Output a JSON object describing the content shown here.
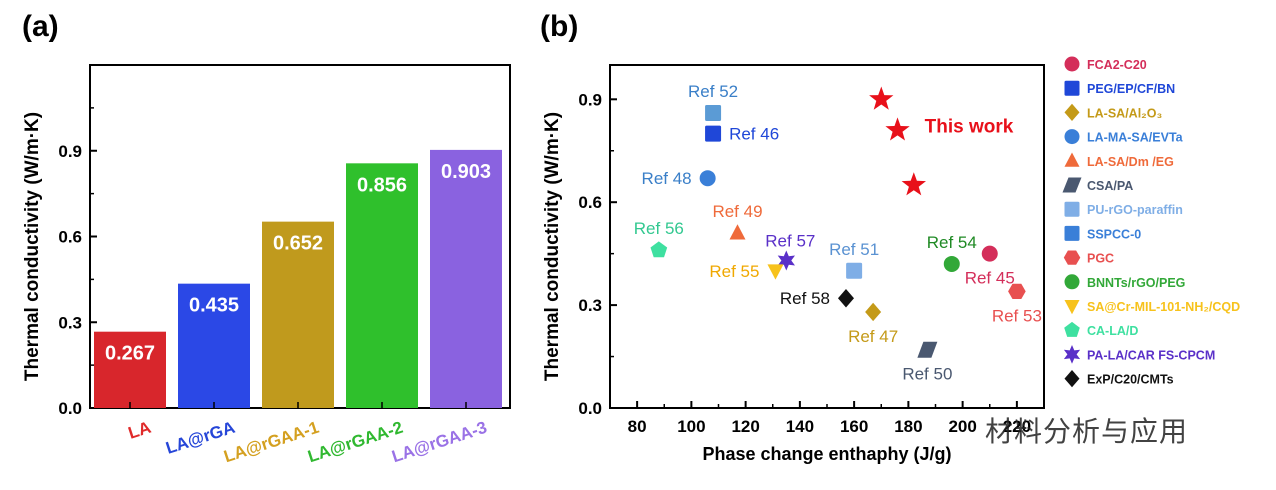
{
  "panel_labels": [
    "(a)",
    "(b)"
  ],
  "watermark": "材料分析与应用",
  "chart_data": [
    {
      "type": "bar",
      "title": "",
      "xlabel": "",
      "ylabel": "Thermal conductivity (W/m·K)",
      "ylim": [
        0,
        1.2
      ],
      "yticks": [
        "0.0",
        "0.3",
        "0.6",
        "0.9"
      ],
      "categories": [
        "LA",
        "LA@rGA",
        "LA@rGAA-1",
        "LA@rGAA-2",
        "LA@rGAA-3"
      ],
      "values": [
        0.267,
        0.435,
        0.652,
        0.856,
        0.903
      ],
      "value_labels": [
        "0.267",
        "0.435",
        "0.652",
        "0.856",
        "0.903"
      ],
      "colors": [
        "#d8262c",
        "#2b48e6",
        "#c09a1d",
        "#2fc02c",
        "#8a62e0"
      ],
      "label_colors": [
        "#e02a2a",
        "#2646d8",
        "#d4a020",
        "#30b830",
        "#9a72e6"
      ],
      "grid": false
    },
    {
      "type": "scatter",
      "title": "",
      "xlabel": "Phase change enthaphy (J/g)",
      "ylabel": "Thermal conductivity (W/m·K)",
      "xlim": [
        70,
        230
      ],
      "ylim": [
        0,
        1.0
      ],
      "xticks": [
        "80",
        "100",
        "120",
        "140",
        "160",
        "180",
        "200",
        "220"
      ],
      "yticks": [
        "0.0",
        "0.3",
        "0.6",
        "0.9"
      ],
      "points": [
        {
          "label": "Ref 52",
          "x": 108,
          "y": 0.86,
          "shape": "square",
          "color": "#5b9bd5",
          "label_color": "#3a7fc8",
          "label_pos": "above"
        },
        {
          "label": "Ref 46",
          "x": 108,
          "y": 0.8,
          "shape": "square",
          "color": "#1f47d8",
          "label_color": "#1f47d8",
          "label_pos": "right"
        },
        {
          "label": "Ref 48",
          "x": 106,
          "y": 0.67,
          "shape": "circle",
          "color": "#3a7fd8",
          "label_color": "#3a7fc8",
          "label_pos": "left"
        },
        {
          "label": "Ref 49",
          "x": 117,
          "y": 0.51,
          "shape": "triangle",
          "color": "#ef6a3a",
          "label_color": "#ef6a3a",
          "label_pos": "above"
        },
        {
          "label": "Ref 56",
          "x": 88,
          "y": 0.46,
          "shape": "pentagon",
          "color": "#3ee0a0",
          "label_color": "#32c890",
          "label_pos": "above"
        },
        {
          "label": "Ref 57",
          "x": 135,
          "y": 0.43,
          "shape": "star6",
          "color": "#5a30c8",
          "label_color": "#5a30c8",
          "label_pos": "above-right"
        },
        {
          "label": "Ref 55",
          "x": 131,
          "y": 0.4,
          "shape": "tri-down",
          "color": "#f7c21c",
          "label_color": "#f0a800",
          "label_pos": "left"
        },
        {
          "label": "Ref 51",
          "x": 160,
          "y": 0.4,
          "shape": "square",
          "color": "#7faee6",
          "label_color": "#5a92d2",
          "label_pos": "above"
        },
        {
          "label": "Ref 58",
          "x": 157,
          "y": 0.32,
          "shape": "diamond",
          "color": "#111111",
          "label_color": "#111111",
          "label_pos": "left"
        },
        {
          "label": "Ref 47",
          "x": 167,
          "y": 0.28,
          "shape": "diamond",
          "color": "#c49a18",
          "label_color": "#c49a18",
          "label_pos": "below"
        },
        {
          "label": "Ref 50",
          "x": 187,
          "y": 0.17,
          "shape": "parallelogram",
          "color": "#4a5870",
          "label_color": "#4a5870",
          "label_pos": "below"
        },
        {
          "label": "Ref 54",
          "x": 196,
          "y": 0.42,
          "shape": "circle",
          "color": "#32a838",
          "label_color": "#1f8a24",
          "label_pos": "above"
        },
        {
          "label": "Ref 45",
          "x": 210,
          "y": 0.45,
          "shape": "circle",
          "color": "#d42e5a",
          "label_color": "#d42e5a",
          "label_pos": "below"
        },
        {
          "label": "Ref 53",
          "x": 220,
          "y": 0.34,
          "shape": "hexagon",
          "color": "#e85050",
          "label_color": "#e85050",
          "label_pos": "below"
        },
        {
          "label": "",
          "x": 170,
          "y": 0.9,
          "shape": "star",
          "color": "#e8101a",
          "label_color": "#e8101a",
          "label_pos": "none"
        },
        {
          "label": "",
          "x": 176,
          "y": 0.81,
          "shape": "star",
          "color": "#e8101a",
          "label_color": "#e8101a",
          "label_pos": "none"
        },
        {
          "label": "",
          "x": 182,
          "y": 0.65,
          "shape": "star",
          "color": "#e8101a",
          "label_color": "#e8101a",
          "label_pos": "none"
        }
      ],
      "annotations": [
        {
          "text": "This work",
          "color": "#e8101a",
          "x": 186,
          "y": 0.82
        }
      ],
      "legend": {
        "placement": "right",
        "entries": [
          {
            "label": "FCA2-C20",
            "shape": "circle",
            "color": "#d42e5a"
          },
          {
            "label": "PEG/EP/CF/BN",
            "shape": "square",
            "color": "#1f47d8"
          },
          {
            "label": "LA-SA/Al₂O₃",
            "shape": "diamond",
            "color": "#c49a18"
          },
          {
            "label": "LA-MA-SA/EVTa",
            "shape": "circle",
            "color": "#3a7fd8"
          },
          {
            "label": "LA-SA/Dm /EG",
            "shape": "triangle",
            "color": "#ef6a3a"
          },
          {
            "label": "CSA/PA",
            "shape": "parallelogram",
            "color": "#4a5870"
          },
          {
            "label": "PU-rGO-paraffin",
            "shape": "square",
            "color": "#7faee6"
          },
          {
            "label": "SSPCC-0",
            "shape": "square",
            "color": "#3a7fd8"
          },
          {
            "label": "PGC",
            "shape": "hexagon",
            "color": "#e85050"
          },
          {
            "label": "BNNTs/rGO/PEG",
            "shape": "circle",
            "color": "#32a838"
          },
          {
            "label": "SA@Cr-MIL-101-NH₂/CQD",
            "shape": "tri-down",
            "color": "#f7c21c"
          },
          {
            "label": "CA-LA/D",
            "shape": "pentagon",
            "color": "#3ee0a0"
          },
          {
            "label": "PA-LA/CAR FS-CPCM",
            "shape": "star6",
            "color": "#5a30c8"
          },
          {
            "label": "ExP/C20/CMTs",
            "shape": "diamond",
            "color": "#111111"
          }
        ]
      }
    }
  ]
}
